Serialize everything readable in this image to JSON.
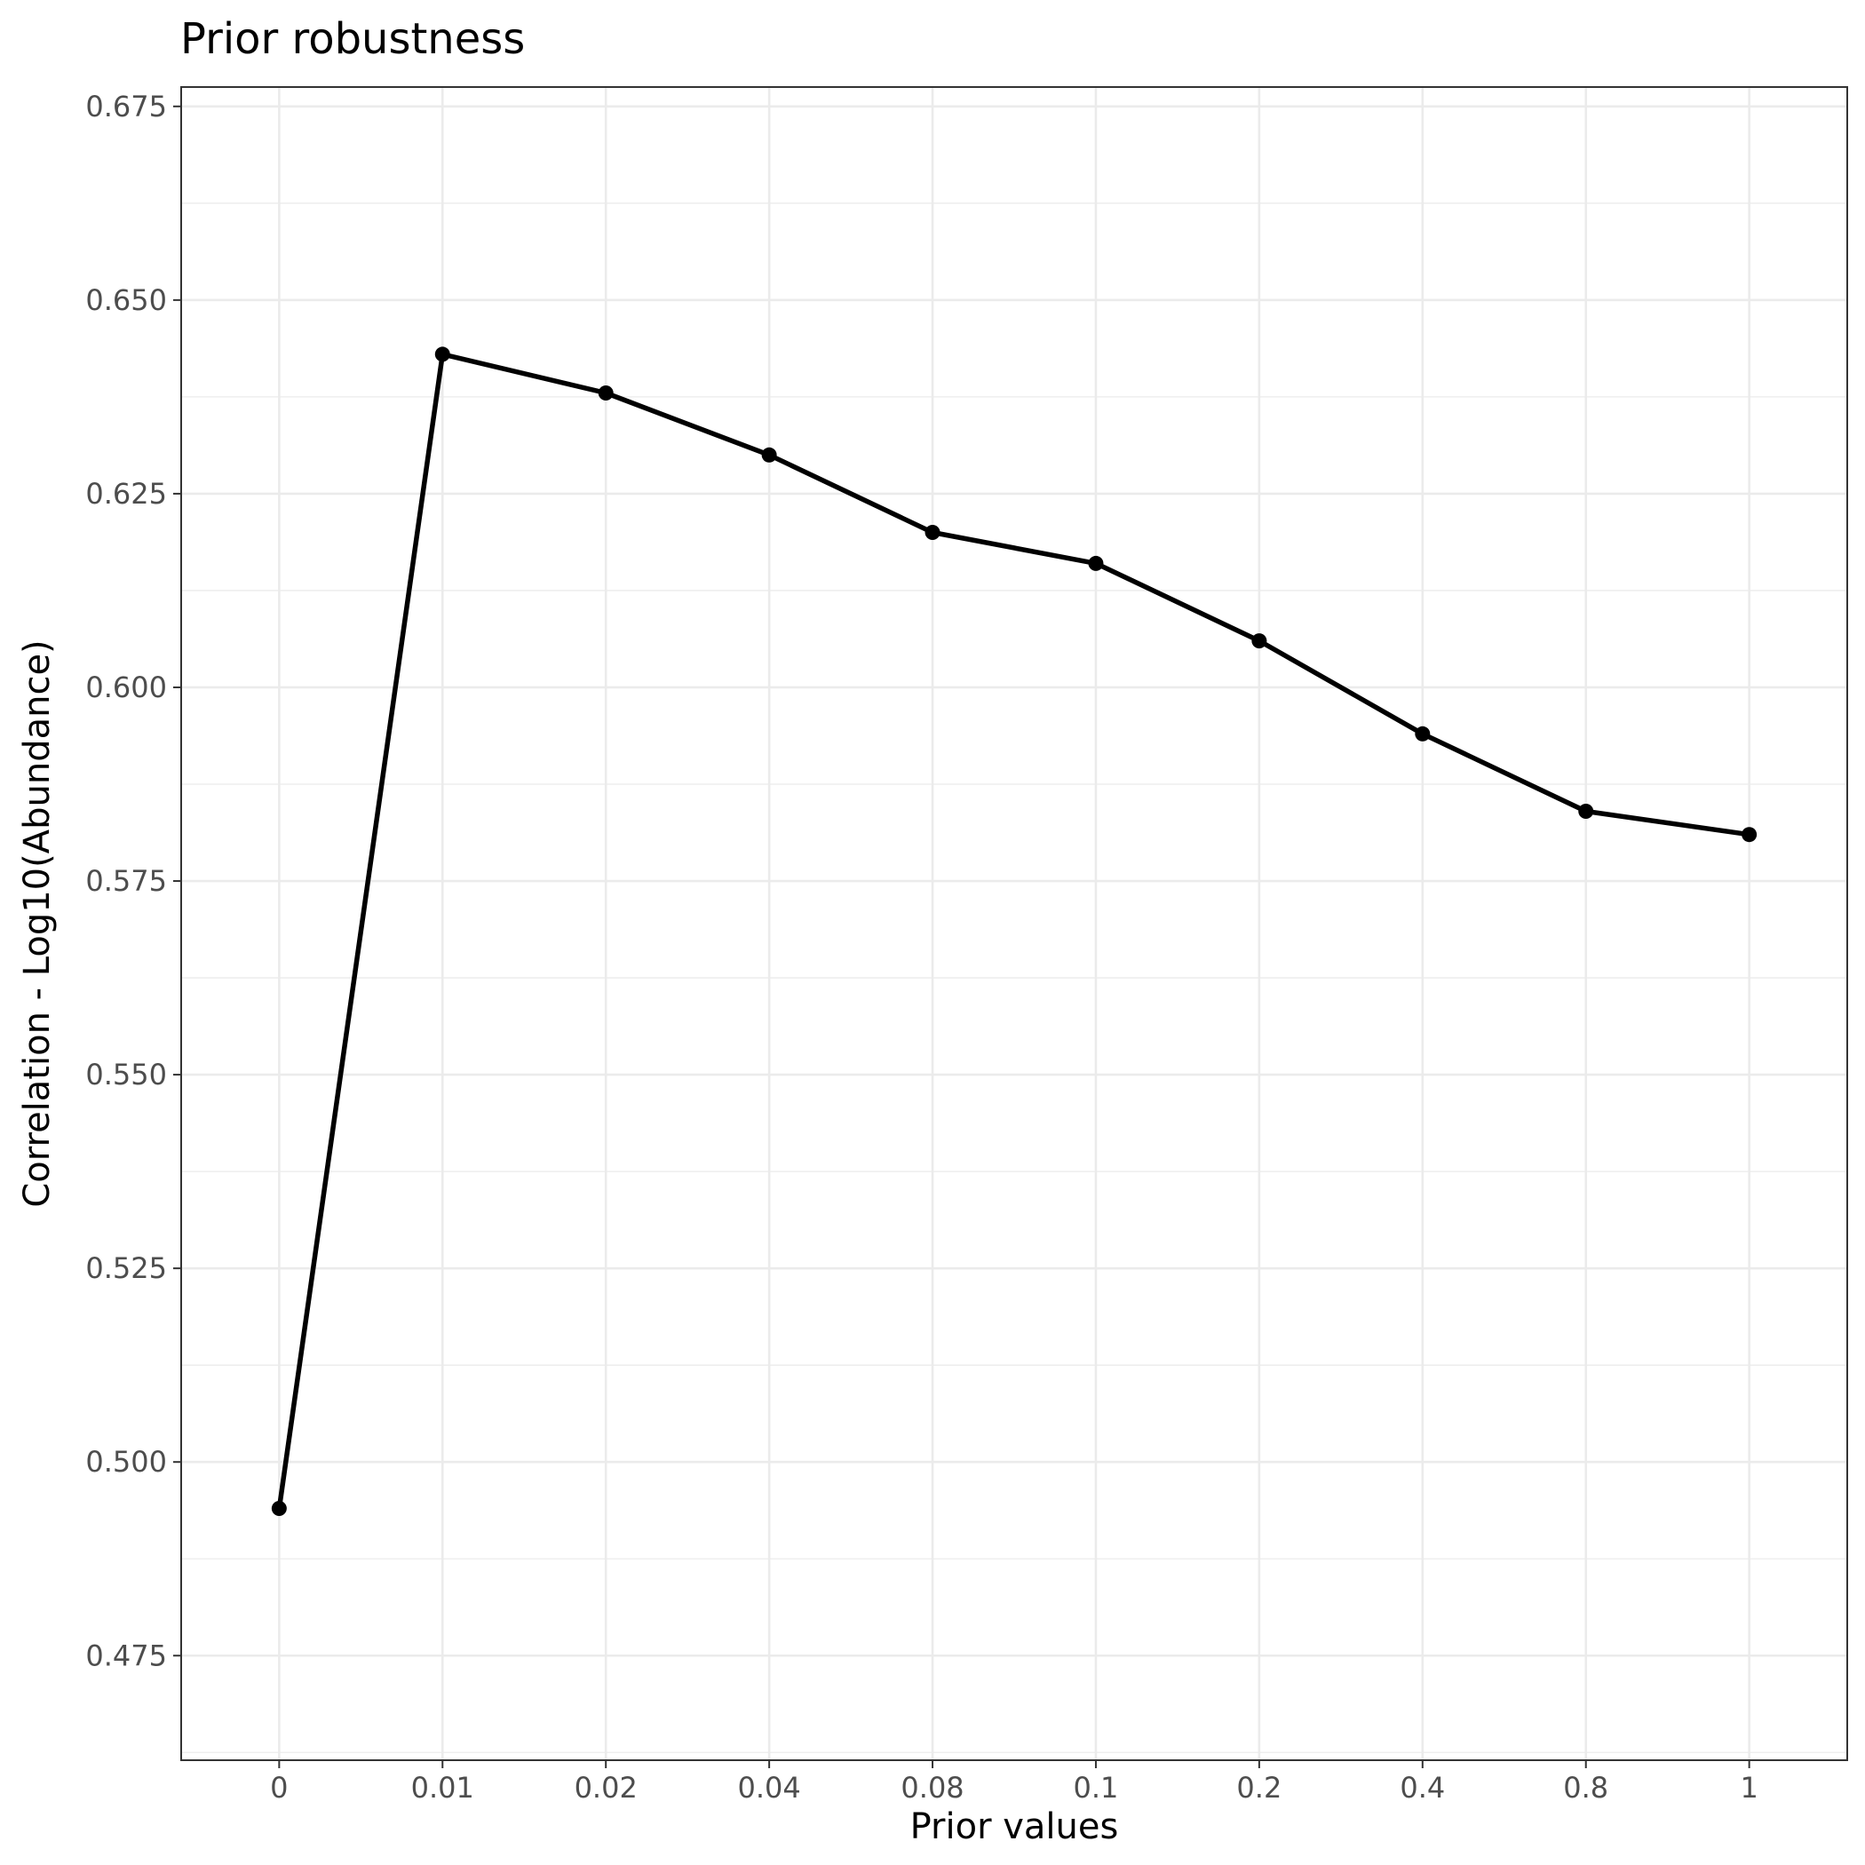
{
  "chart_data": {
    "type": "line",
    "title": "Prior robustness",
    "xlabel": "Prior values",
    "ylabel": "Correlation - Log10(Abundance)",
    "categories": [
      "0",
      "0.01",
      "0.02",
      "0.04",
      "0.08",
      "0.1",
      "0.2",
      "0.4",
      "0.8",
      "1"
    ],
    "series": [
      {
        "values": [
          0.494,
          0.643,
          0.638,
          0.63,
          0.62,
          0.616,
          0.606,
          0.594,
          0.584,
          0.581
        ],
        "color": "#000000"
      }
    ],
    "ylim": [
      0.4615,
      0.6775
    ],
    "y_ticks": [
      0.475,
      0.5,
      0.525,
      0.55,
      0.575,
      0.6,
      0.625,
      0.65,
      0.675
    ],
    "y_tick_labels": [
      "0.475",
      "0.500",
      "0.525",
      "0.550",
      "0.575",
      "0.600",
      "0.625",
      "0.650",
      "0.675"
    ],
    "y_minor_ticks": [
      0.4625,
      0.4875,
      0.5125,
      0.5375,
      0.5625,
      0.5875,
      0.6125,
      0.6375,
      0.6625
    ],
    "grid": true,
    "legend": "none",
    "colors": {
      "grid": "#ebebeb",
      "border": "#333333",
      "line": "#000000"
    }
  }
}
